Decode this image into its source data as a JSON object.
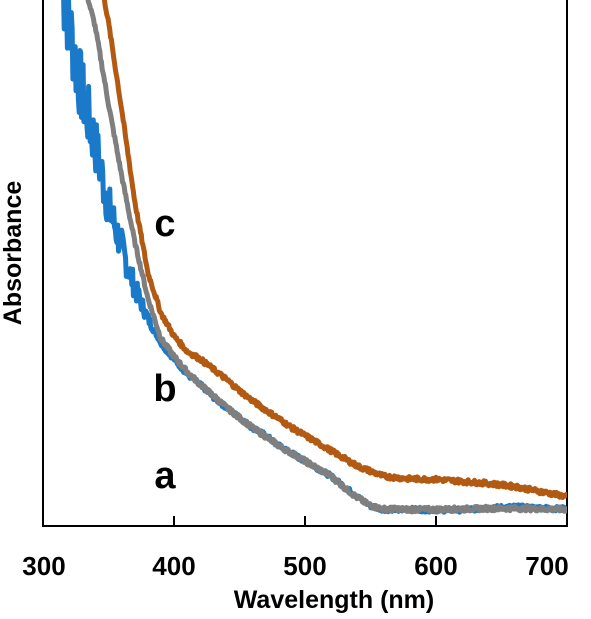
{
  "chart_data": {
    "type": "line",
    "xlabel": "Wavelength (nm)",
    "ylabel": "Absorbance",
    "xlim": [
      300,
      700
    ],
    "ylim": [
      0,
      1
    ],
    "x_ticks": [
      300,
      400,
      500,
      600,
      700
    ],
    "x_tick_labels": [
      "300",
      "400",
      "500",
      "600",
      "700"
    ],
    "y_ticks_shown": false,
    "grid": false,
    "legend": "none",
    "series": [
      {
        "name": "a",
        "color": "#1a7ac9",
        "noisy_below": 390,
        "x": [
          315,
          320,
          325,
          330,
          340,
          350,
          360,
          370,
          380,
          390,
          400,
          410,
          420,
          430,
          440,
          450,
          460,
          470,
          480,
          490,
          500,
          510,
          520,
          530,
          540,
          550,
          560,
          580,
          600,
          620,
          640,
          660,
          680,
          700
        ],
        "y": [
          1.03,
          0.96,
          0.88,
          0.82,
          0.72,
          0.6,
          0.52,
          0.44,
          0.38,
          0.33,
          0.3,
          0.27,
          0.25,
          0.225,
          0.205,
          0.185,
          0.165,
          0.15,
          0.13,
          0.115,
          0.1,
          0.085,
          0.07,
          0.05,
          0.03,
          0.012,
          0.005,
          0.005,
          0.004,
          0.004,
          0.008,
          0.01,
          0.008,
          0.006
        ]
      },
      {
        "name": "b",
        "color": "#7f7f7f",
        "x": [
          332,
          340,
          350,
          360,
          370,
          380,
          390,
          400,
          410,
          420,
          430,
          440,
          450,
          460,
          470,
          480,
          490,
          500,
          510,
          520,
          530,
          540,
          550,
          560,
          580,
          600,
          620,
          640,
          660,
          680,
          700
        ],
        "y": [
          1.03,
          0.95,
          0.8,
          0.66,
          0.53,
          0.42,
          0.34,
          0.305,
          0.275,
          0.25,
          0.228,
          0.205,
          0.185,
          0.165,
          0.148,
          0.13,
          0.115,
          0.1,
          0.085,
          0.07,
          0.048,
          0.028,
          0.012,
          0.006,
          0.005,
          0.005,
          0.006,
          0.007,
          0.007,
          0.006,
          0.005
        ]
      },
      {
        "name": "c",
        "color": "#b35a12",
        "x": [
          345,
          350,
          360,
          370,
          380,
          390,
          400,
          410,
          420,
          430,
          440,
          450,
          460,
          470,
          480,
          490,
          500,
          510,
          520,
          530,
          540,
          550,
          560,
          580,
          600,
          620,
          640,
          660,
          680,
          700
        ],
        "y": [
          1.03,
          0.96,
          0.79,
          0.61,
          0.47,
          0.39,
          0.345,
          0.315,
          0.3,
          0.28,
          0.26,
          0.238,
          0.218,
          0.2,
          0.183,
          0.165,
          0.15,
          0.135,
          0.12,
          0.105,
          0.09,
          0.08,
          0.07,
          0.065,
          0.064,
          0.06,
          0.056,
          0.05,
          0.04,
          0.03
        ]
      }
    ],
    "annotations": [
      "c",
      "b",
      "a"
    ]
  },
  "style": {
    "axis_color": "#000000",
    "background": "#ffffff"
  }
}
